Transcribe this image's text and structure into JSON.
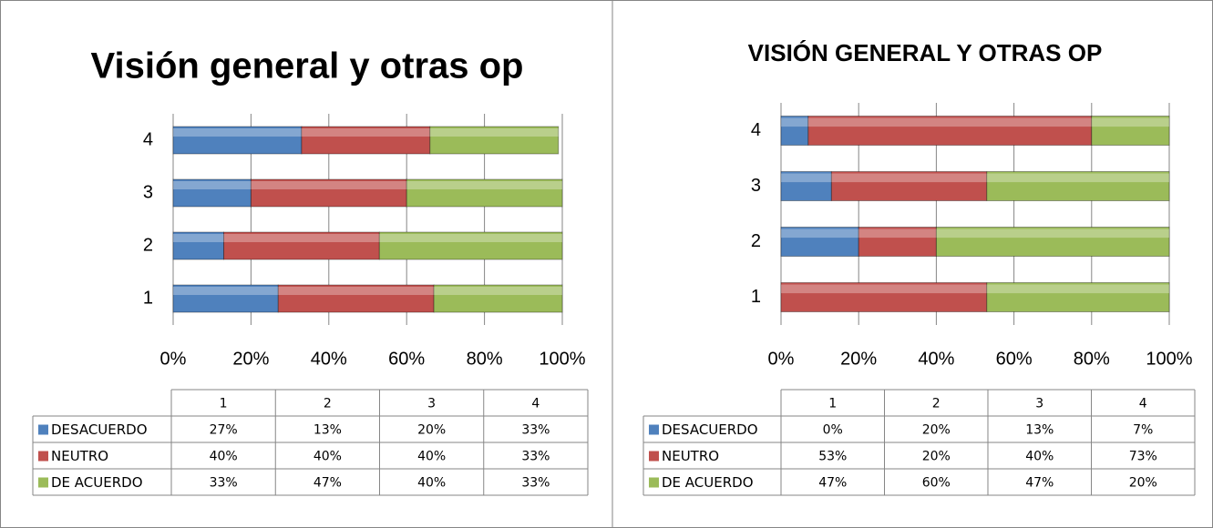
{
  "chart_data": [
    {
      "type": "stacked-bar-horizontal",
      "title": "Visión general y otras op",
      "categories": [
        "1",
        "2",
        "3",
        "4"
      ],
      "series": [
        {
          "name": "DESACUERDO",
          "color": "#4f81bd",
          "values": [
            27,
            13,
            20,
            33
          ],
          "value_labels": [
            "27%",
            "13%",
            "20%",
            "33%"
          ]
        },
        {
          "name": "NEUTRO",
          "color": "#c0504d",
          "values": [
            40,
            40,
            40,
            33
          ],
          "value_labels": [
            "40%",
            "40%",
            "40%",
            "33%"
          ]
        },
        {
          "name": "DE ACUERDO",
          "color": "#9bbb59",
          "values": [
            33,
            47,
            40,
            33
          ],
          "value_labels": [
            "33%",
            "47%",
            "40%",
            "33%"
          ]
        }
      ],
      "xlim": [
        0,
        100
      ],
      "xticks": [
        {
          "value": 0,
          "label": "0%"
        },
        {
          "value": 20,
          "label": "20%"
        },
        {
          "value": 40,
          "label": "40%"
        },
        {
          "value": 60,
          "label": "60%"
        },
        {
          "value": 80,
          "label": "80%"
        },
        {
          "value": 100,
          "label": "100%"
        }
      ],
      "grid": true
    },
    {
      "type": "stacked-bar-horizontal",
      "title": "VISIÓN GENERAL Y OTRAS OP",
      "categories": [
        "1",
        "2",
        "3",
        "4"
      ],
      "series": [
        {
          "name": "DESACUERDO",
          "color": "#4f81bd",
          "values": [
            0,
            20,
            13,
            7
          ],
          "value_labels": [
            "0%",
            "20%",
            "13%",
            "7%"
          ]
        },
        {
          "name": "NEUTRO",
          "color": "#c0504d",
          "values": [
            53,
            20,
            40,
            73
          ],
          "value_labels": [
            "53%",
            "20%",
            "40%",
            "73%"
          ]
        },
        {
          "name": "DE ACUERDO",
          "color": "#9bbb59",
          "values": [
            47,
            60,
            47,
            20
          ],
          "value_labels": [
            "47%",
            "60%",
            "47%",
            "20%"
          ]
        }
      ],
      "xlim": [
        0,
        100
      ],
      "xticks": [
        {
          "value": 0,
          "label": "0%"
        },
        {
          "value": 20,
          "label": "20%"
        },
        {
          "value": 40,
          "label": "40%"
        },
        {
          "value": 60,
          "label": "60%"
        },
        {
          "value": 80,
          "label": "80%"
        },
        {
          "value": 100,
          "label": "100%"
        }
      ],
      "grid": true
    }
  ]
}
